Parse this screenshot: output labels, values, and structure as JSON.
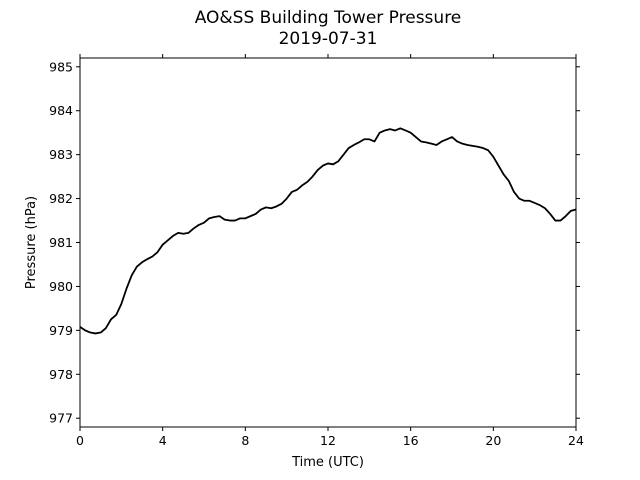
{
  "chart_data": {
    "type": "line",
    "title": "AO&SS Building Tower Pressure",
    "subtitle": "2019-07-31",
    "xlabel": "Time (UTC)",
    "ylabel": "Pressure (hPa)",
    "xlim": [
      0,
      24
    ],
    "ylim": [
      976.8,
      985.2
    ],
    "x_ticks": [
      0,
      4,
      8,
      12,
      16,
      20,
      24
    ],
    "y_ticks": [
      977,
      978,
      979,
      980,
      981,
      982,
      983,
      984,
      985
    ],
    "grid": false,
    "legend": "none",
    "line_color": "#000000",
    "series": [
      {
        "x": [
          0,
          0.25,
          0.5,
          0.75,
          1.0,
          1.25,
          1.5,
          1.75,
          2.0,
          2.25,
          2.5,
          2.75,
          3.0,
          3.25,
          3.5,
          3.75,
          4.0,
          4.25,
          4.5,
          4.75,
          5.0,
          5.25,
          5.5,
          5.75,
          6.0,
          6.25,
          6.5,
          6.75,
          7.0,
          7.25,
          7.5,
          7.75,
          8.0,
          8.25,
          8.5,
          8.75,
          9.0,
          9.25,
          9.5,
          9.75,
          10.0,
          10.25,
          10.5,
          10.75,
          11.0,
          11.25,
          11.5,
          11.75,
          12.0,
          12.25,
          12.5,
          12.75,
          13.0,
          13.25,
          13.5,
          13.75,
          14.0,
          14.25,
          14.5,
          14.75,
          15.0,
          15.25,
          15.5,
          15.75,
          16.0,
          16.25,
          16.5,
          16.75,
          17.0,
          17.25,
          17.5,
          17.75,
          18.0,
          18.25,
          18.5,
          18.75,
          19.0,
          19.25,
          19.5,
          19.75,
          20.0,
          20.25,
          20.5,
          20.75,
          21.0,
          21.25,
          21.5,
          21.75,
          22.0,
          22.25,
          22.5,
          22.75,
          23.0,
          23.25,
          23.5,
          23.75,
          24.0
        ],
        "values": [
          979.08,
          979.0,
          978.95,
          978.93,
          978.95,
          979.05,
          979.25,
          979.35,
          979.6,
          979.95,
          980.25,
          980.45,
          980.55,
          980.62,
          980.68,
          980.78,
          980.95,
          981.05,
          981.15,
          981.22,
          981.2,
          981.22,
          981.32,
          981.4,
          981.45,
          981.55,
          981.58,
          981.6,
          981.52,
          981.5,
          981.5,
          981.55,
          981.55,
          981.6,
          981.65,
          981.75,
          981.8,
          981.78,
          981.82,
          981.88,
          982.0,
          982.15,
          982.2,
          982.3,
          982.38,
          982.5,
          982.65,
          982.75,
          982.8,
          982.78,
          982.85,
          983.0,
          983.15,
          983.22,
          983.28,
          983.35,
          983.35,
          983.3,
          983.5,
          983.55,
          983.58,
          983.55,
          983.6,
          983.55,
          983.5,
          983.4,
          983.3,
          983.28,
          983.25,
          983.22,
          983.3,
          983.35,
          983.4,
          983.3,
          983.25,
          983.22,
          983.2,
          983.18,
          983.15,
          983.1,
          982.95,
          982.75,
          982.55,
          982.4,
          982.15,
          982.0,
          981.95,
          981.95,
          981.9,
          981.85,
          981.78,
          981.65,
          981.5,
          981.5,
          981.6,
          981.72,
          981.75
        ]
      }
    ]
  }
}
